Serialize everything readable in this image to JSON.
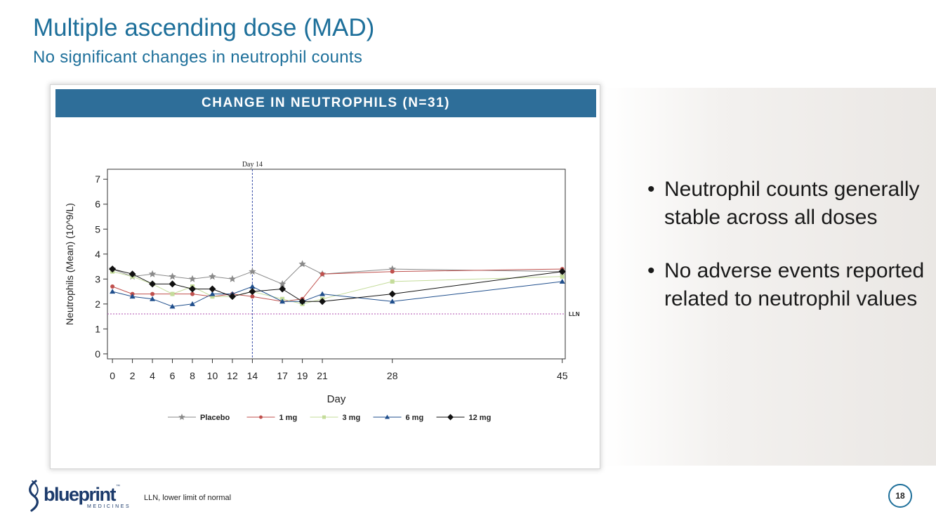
{
  "slide": {
    "title": "Multiple ascending dose (MAD)",
    "subtitle": "No significant changes in neutrophil counts",
    "bullets": [
      "Neutrophil counts generally stable across all doses",
      "No adverse events reported related to neutrophil values"
    ],
    "bullet_char": "•",
    "footnote": "LLN, lower limit of normal",
    "page_number": "18",
    "logo": {
      "word": "blueprint",
      "tm": "™",
      "sub": "MEDICINES"
    },
    "colors": {
      "title": "#1d6f9a",
      "header_bg": "#2e6e99",
      "logo": "#1b3a6b"
    }
  },
  "chart_data": {
    "type": "line",
    "header": "CHANGE IN NEUTROPHILS (N=31)",
    "xlabel": "Day",
    "ylabel": "Neutrophils (Mean) (10^9/L)",
    "xlim": [
      -0.5,
      45.3
    ],
    "ylim": [
      -0.2,
      7.4
    ],
    "xticks": [
      0,
      2,
      4,
      6,
      8,
      10,
      12,
      14,
      17,
      19,
      21,
      28,
      45
    ],
    "yticks": [
      0,
      1,
      2,
      3,
      4,
      5,
      6,
      7
    ],
    "vline": {
      "x": 14,
      "label": "Day 14",
      "color": "#3a4fa8"
    },
    "hline": {
      "y": 1.6,
      "label": "LLN",
      "color": "#b04fb0"
    },
    "legend_position": "bottom-center",
    "series": [
      {
        "name": "Placebo",
        "color": "#8a8a8a",
        "marker": "star",
        "x": [
          0,
          2,
          4,
          6,
          8,
          10,
          12,
          14,
          17,
          19,
          21,
          28,
          45
        ],
        "y": [
          3.4,
          3.1,
          3.2,
          3.1,
          3.0,
          3.1,
          3.0,
          3.3,
          2.8,
          3.6,
          3.2,
          3.4,
          3.3
        ]
      },
      {
        "name": "1 mg",
        "color": "#c0504d",
        "marker": "circle",
        "x": [
          0,
          2,
          4,
          6,
          8,
          10,
          12,
          14,
          17,
          19,
          21,
          28,
          45
        ],
        "y": [
          2.7,
          2.4,
          2.4,
          2.4,
          2.4,
          2.3,
          2.4,
          2.3,
          2.1,
          2.2,
          3.2,
          3.3,
          3.4
        ]
      },
      {
        "name": "3 mg",
        "color": "#c4dc9a",
        "marker": "square",
        "x": [
          0,
          2,
          4,
          6,
          8,
          10,
          12,
          14,
          17,
          19,
          21,
          28,
          45
        ],
        "y": [
          3.3,
          3.1,
          2.8,
          2.4,
          2.7,
          2.3,
          2.3,
          2.5,
          2.2,
          2.0,
          2.2,
          2.9,
          3.1
        ]
      },
      {
        "name": "6 mg",
        "color": "#1f4e8c",
        "marker": "triangle",
        "x": [
          0,
          2,
          4,
          6,
          8,
          10,
          12,
          14,
          17,
          19,
          21,
          28,
          45
        ],
        "y": [
          2.5,
          2.3,
          2.2,
          1.9,
          2.0,
          2.4,
          2.4,
          2.7,
          2.1,
          2.1,
          2.4,
          2.1,
          2.9
        ]
      },
      {
        "name": "12 mg",
        "color": "#111111",
        "marker": "diamond",
        "x": [
          0,
          2,
          4,
          6,
          8,
          10,
          12,
          14,
          17,
          19,
          21,
          28,
          45
        ],
        "y": [
          3.4,
          3.2,
          2.8,
          2.8,
          2.6,
          2.6,
          2.3,
          2.5,
          2.6,
          2.1,
          2.1,
          2.4,
          3.3
        ]
      }
    ]
  }
}
